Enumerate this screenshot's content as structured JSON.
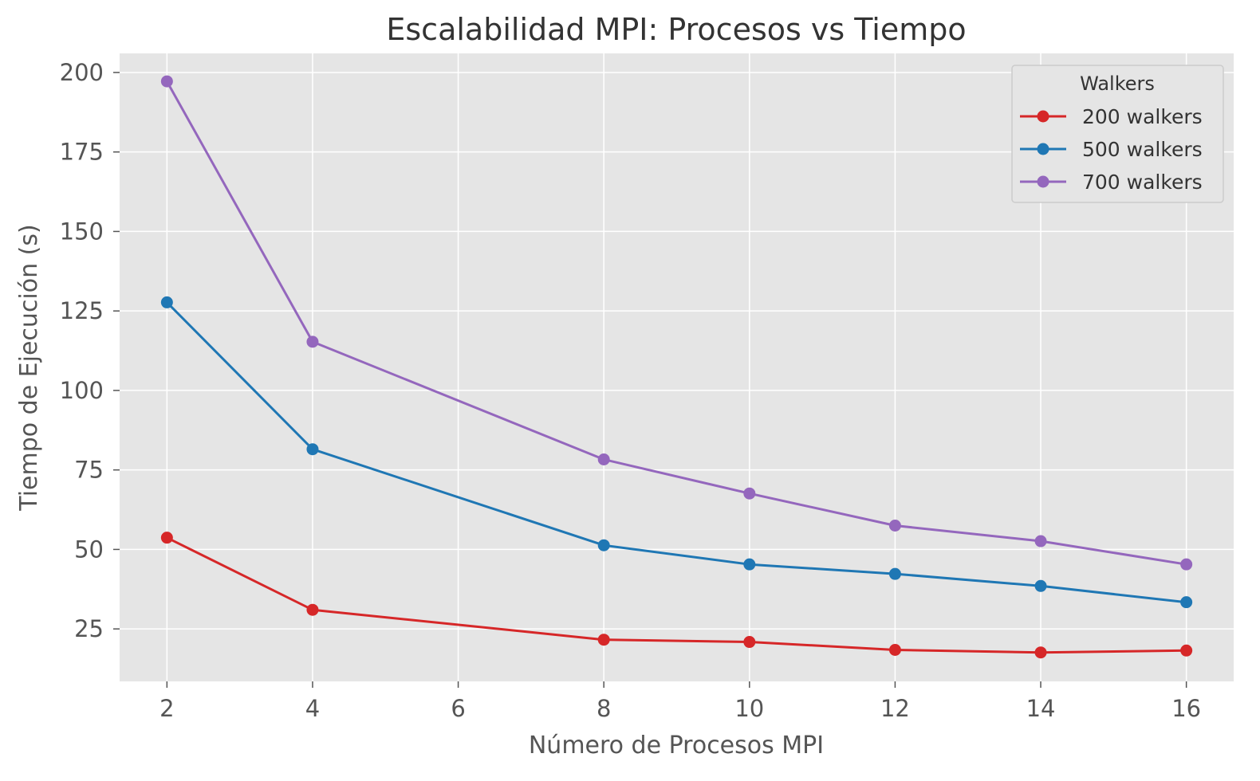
{
  "chart_data": {
    "type": "line",
    "title": "Escalabilidad MPI: Procesos vs Tiempo",
    "xlabel": "Número de Procesos MPI",
    "ylabel": "Tiempo de Ejecución (s)",
    "x": [
      2,
      4,
      8,
      10,
      12,
      14,
      16
    ],
    "xlim": [
      1.35,
      16.65
    ],
    "ylim": [
      8.5,
      206
    ],
    "xticks": [
      2,
      4,
      6,
      8,
      10,
      12,
      14,
      16
    ],
    "yticks": [
      25,
      50,
      75,
      100,
      125,
      150,
      175,
      200
    ],
    "grid": true,
    "legend": {
      "title": "Walkers",
      "position": "top-right"
    },
    "series": [
      {
        "name": "200 walkers",
        "color": "#d62728",
        "values": [
          53.7,
          31.0,
          21.6,
          20.9,
          18.4,
          17.6,
          18.2
        ]
      },
      {
        "name": "500 walkers",
        "color": "#1f77b4",
        "values": [
          127.7,
          81.5,
          51.3,
          45.3,
          42.3,
          38.5,
          33.4
        ]
      },
      {
        "name": "700 walkers",
        "color": "#9467bd",
        "values": [
          197.2,
          115.3,
          78.3,
          67.6,
          57.5,
          52.6,
          45.3
        ]
      }
    ]
  }
}
